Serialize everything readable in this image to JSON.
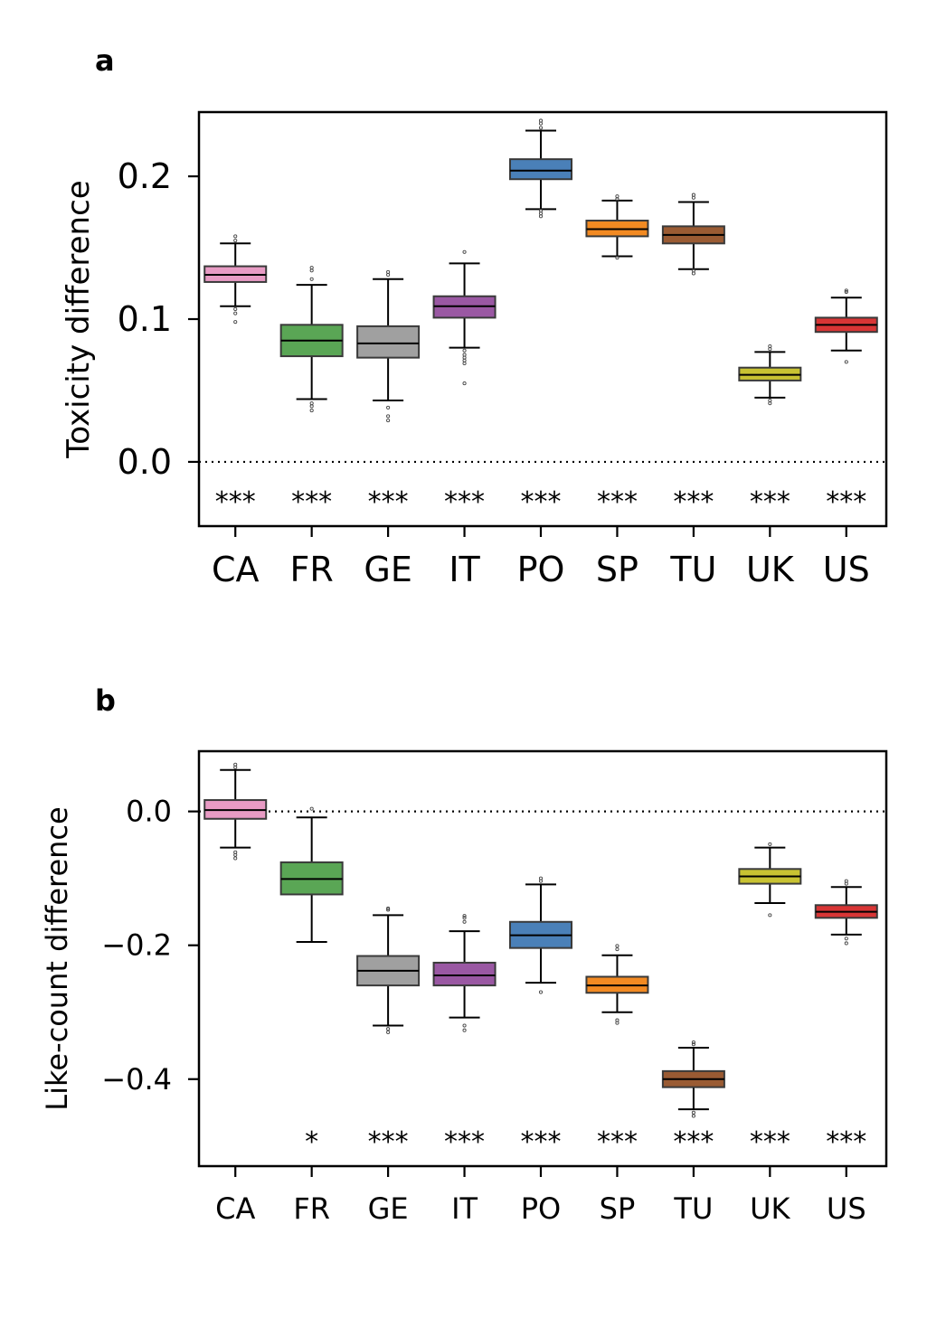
{
  "chart_data": [
    {
      "panel": "a",
      "type": "box",
      "ylabel": "Toxicity difference",
      "ylim": [
        -0.045,
        0.245
      ],
      "yticks": [
        "0.0",
        "0.1",
        "0.2"
      ],
      "yticks_values": [
        0.0,
        0.1,
        0.2
      ],
      "reference_line": 0.0,
      "categories": [
        "CA",
        "FR",
        "GE",
        "IT",
        "PO",
        "SP",
        "TU",
        "UK",
        "US"
      ],
      "colors": [
        "#e89bc4",
        "#5aa655",
        "#a0a0a0",
        "#9a58a3",
        "#4a80b8",
        "#f28a22",
        "#9a5b33",
        "#c8c232",
        "#d83535"
      ],
      "significance": [
        "***",
        "***",
        "***",
        "***",
        "***",
        "***",
        "***",
        "***",
        "***"
      ],
      "boxes": [
        {
          "whislo": 0.109,
          "q1": 0.126,
          "med": 0.131,
          "q3": 0.137,
          "whishi": 0.153,
          "fliers": [
            0.098,
            0.104,
            0.107,
            0.155,
            0.158
          ]
        },
        {
          "whislo": 0.044,
          "q1": 0.074,
          "med": 0.085,
          "q3": 0.096,
          "whishi": 0.124,
          "fliers": [
            0.036,
            0.039,
            0.041,
            0.128,
            0.134,
            0.136
          ]
        },
        {
          "whislo": 0.043,
          "q1": 0.073,
          "med": 0.083,
          "q3": 0.095,
          "whishi": 0.128,
          "fliers": [
            0.029,
            0.032,
            0.038,
            0.131,
            0.133
          ]
        },
        {
          "whislo": 0.08,
          "q1": 0.101,
          "med": 0.109,
          "q3": 0.116,
          "whishi": 0.139,
          "fliers": [
            0.055,
            0.069,
            0.071,
            0.073,
            0.075,
            0.078,
            0.147
          ]
        },
        {
          "whislo": 0.177,
          "q1": 0.198,
          "med": 0.204,
          "q3": 0.212,
          "whishi": 0.232,
          "fliers": [
            0.172,
            0.174,
            0.176,
            0.234,
            0.237,
            0.239
          ]
        },
        {
          "whislo": 0.144,
          "q1": 0.158,
          "med": 0.163,
          "q3": 0.169,
          "whishi": 0.183,
          "fliers": [
            0.143,
            0.184,
            0.186
          ]
        },
        {
          "whislo": 0.135,
          "q1": 0.153,
          "med": 0.159,
          "q3": 0.165,
          "whishi": 0.182,
          "fliers": [
            0.132,
            0.134,
            0.185,
            0.187
          ]
        },
        {
          "whislo": 0.045,
          "q1": 0.057,
          "med": 0.061,
          "q3": 0.066,
          "whishi": 0.077,
          "fliers": [
            0.041,
            0.043,
            0.079,
            0.081
          ]
        },
        {
          "whislo": 0.078,
          "q1": 0.091,
          "med": 0.096,
          "q3": 0.101,
          "whishi": 0.115,
          "fliers": [
            0.07,
            0.119,
            0.12
          ]
        }
      ]
    },
    {
      "panel": "b",
      "type": "box",
      "ylabel": "Like-count difference",
      "ylim": [
        -0.53,
        0.09
      ],
      "yticks": [
        "0.0",
        "−0.2",
        "−0.4"
      ],
      "yticks_values": [
        0.0,
        -0.2,
        -0.4
      ],
      "reference_line": 0.0,
      "categories": [
        "CA",
        "FR",
        "GE",
        "IT",
        "PO",
        "SP",
        "TU",
        "UK",
        "US"
      ],
      "colors": [
        "#e89bc4",
        "#5aa655",
        "#a0a0a0",
        "#9a58a3",
        "#4a80b8",
        "#f28a22",
        "#9a5b33",
        "#c8c232",
        "#d83535"
      ],
      "significance": [
        "",
        "*",
        "***",
        "***",
        "***",
        "***",
        "***",
        "***",
        "***"
      ],
      "boxes": [
        {
          "whislo": -0.054,
          "q1": -0.011,
          "med": 0.002,
          "q3": 0.017,
          "whishi": 0.062,
          "fliers": [
            -0.07,
            -0.065,
            -0.061,
            0.066,
            0.07
          ]
        },
        {
          "whislo": -0.195,
          "q1": -0.124,
          "med": -0.101,
          "q3": -0.076,
          "whishi": -0.009,
          "fliers": [
            0.004
          ]
        },
        {
          "whislo": -0.32,
          "q1": -0.26,
          "med": -0.238,
          "q3": -0.216,
          "whishi": -0.155,
          "fliers": [
            -0.33,
            -0.325,
            -0.147,
            -0.145
          ]
        },
        {
          "whislo": -0.308,
          "q1": -0.26,
          "med": -0.245,
          "q3": -0.226,
          "whishi": -0.179,
          "fliers": [
            -0.327,
            -0.32,
            -0.165,
            -0.159,
            -0.156
          ]
        },
        {
          "whislo": -0.256,
          "q1": -0.204,
          "med": -0.185,
          "q3": -0.165,
          "whishi": -0.109,
          "fliers": [
            -0.27,
            -0.104,
            -0.1
          ]
        },
        {
          "whislo": -0.3,
          "q1": -0.271,
          "med": -0.26,
          "q3": -0.247,
          "whishi": -0.215,
          "fliers": [
            -0.316,
            -0.312,
            -0.206,
            -0.201
          ]
        },
        {
          "whislo": -0.445,
          "q1": -0.412,
          "med": -0.4,
          "q3": -0.388,
          "whishi": -0.353,
          "fliers": [
            -0.455,
            -0.45,
            -0.348,
            -0.345
          ]
        },
        {
          "whislo": -0.137,
          "q1": -0.108,
          "med": -0.097,
          "q3": -0.086,
          "whishi": -0.054,
          "fliers": [
            -0.155,
            -0.049
          ]
        },
        {
          "whislo": -0.184,
          "q1": -0.159,
          "med": -0.15,
          "q3": -0.14,
          "whishi": -0.113,
          "fliers": [
            -0.197,
            -0.19,
            -0.108,
            -0.104
          ]
        }
      ]
    }
  ]
}
